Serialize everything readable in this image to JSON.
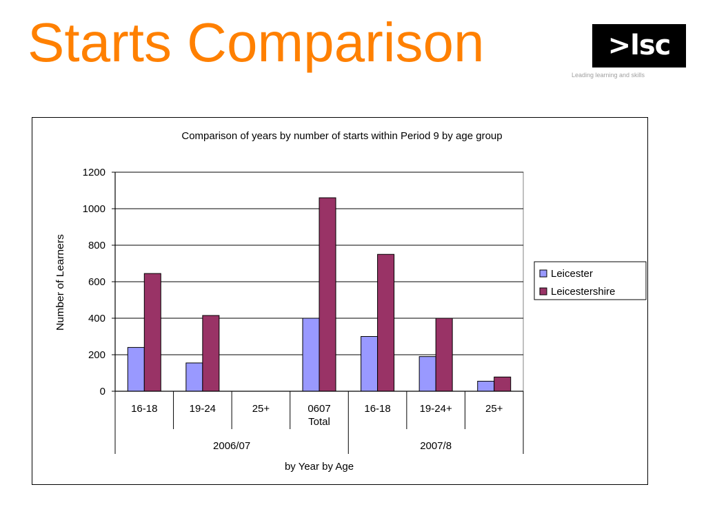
{
  "slide": {
    "title": "Starts Comparison",
    "logo_text": ">lsc",
    "logo_tagline": "Leading learning and skills"
  },
  "chart_data": {
    "type": "bar",
    "title": "Comparison of years by number of starts within Period 9 by age group",
    "xlabel": "by Year by Age",
    "ylabel": "Number of Learners",
    "ylim": [
      0,
      1200
    ],
    "yticks": [
      0,
      200,
      400,
      600,
      800,
      1000,
      1200
    ],
    "grid": true,
    "legend_position": "right",
    "categories": [
      "16-18",
      "19-24",
      "25+",
      "0607 Total",
      "16-18",
      "19-24+",
      "25+"
    ],
    "category_lines": [
      [
        "16-18"
      ],
      [
        "19-24"
      ],
      [
        "25+"
      ],
      [
        "0607",
        "Total"
      ],
      [
        "16-18"
      ],
      [
        "19-24+"
      ],
      [
        "25+"
      ]
    ],
    "groups": [
      {
        "label": "2006/07",
        "start": 0,
        "end": 3
      },
      {
        "label": "2007/8",
        "start": 4,
        "end": 6
      }
    ],
    "series": [
      {
        "name": "Leicester",
        "color": "#9999ff",
        "values": [
          240,
          155,
          0,
          400,
          300,
          190,
          55
        ]
      },
      {
        "name": "Leicestershire",
        "color": "#993366",
        "values": [
          645,
          415,
          0,
          1060,
          750,
          400,
          78
        ]
      }
    ]
  }
}
